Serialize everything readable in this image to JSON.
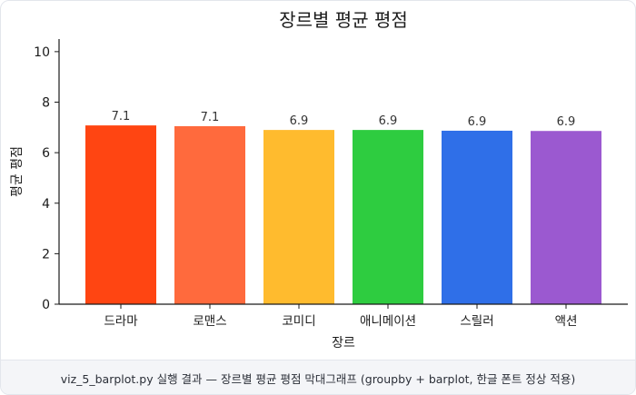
{
  "chart_data": {
    "type": "bar",
    "title": "장르별 평균 평점",
    "xlabel": "장르",
    "ylabel": "평균 평점",
    "categories": [
      "드라마",
      "로맨스",
      "코미디",
      "애니메이션",
      "스릴러",
      "액션"
    ],
    "values": [
      7.08,
      7.05,
      6.9,
      6.9,
      6.87,
      6.86
    ],
    "value_labels": [
      "7.1",
      "7.1",
      "6.9",
      "6.9",
      "6.9",
      "6.9"
    ],
    "colors": [
      "#ff4512",
      "#ff6a3d",
      "#ffbb2e",
      "#2ecc40",
      "#2f6fe8",
      "#9b59d0"
    ],
    "ylim": [
      0,
      10.5
    ],
    "yticks": [
      "0",
      "2",
      "4",
      "6",
      "8",
      "10"
    ],
    "grid": false
  },
  "caption": "viz_5_barplot.py 실행 결과 — 장르별 평균 평점 막대그래프 (groupby + barplot, 한글 폰트 정상 적용)"
}
